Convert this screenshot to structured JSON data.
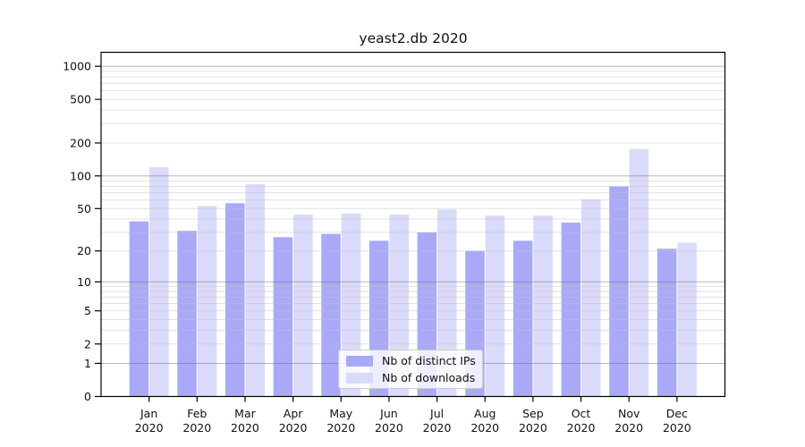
{
  "chart_data": {
    "type": "bar",
    "title": "yeast2.db 2020",
    "y_scale": "symlog (log1p)",
    "ylim": [
      0,
      1340
    ],
    "yticks": [
      1000,
      500,
      200,
      100,
      50,
      20,
      10,
      5,
      2,
      1,
      0
    ],
    "grid": "on",
    "months": [
      "Jan",
      "Feb",
      "Mar",
      "Apr",
      "May",
      "Jun",
      "Jul",
      "Aug",
      "Sep",
      "Oct",
      "Nov",
      "Dec"
    ],
    "year": "2020",
    "series": [
      {
        "key": "ips",
        "name": "Nb of distinct IPs",
        "color": "#a9a9f8",
        "values": [
          38,
          31,
          56,
          27,
          29,
          25,
          30,
          20,
          25,
          37,
          80,
          21
        ]
      },
      {
        "key": "downloads",
        "name": "Nb of downloads",
        "color": "#dadafa",
        "values": [
          120,
          53,
          84,
          44,
          45,
          44,
          49,
          43,
          43,
          61,
          176,
          24
        ]
      }
    ],
    "legend_position": "lower center",
    "colors": {
      "axis": "#000000",
      "text": "#111111",
      "grid_major": "rgba(110,110,110,0.50)",
      "grid_minor": "rgba(195,195,195,0.50)",
      "background": "#ffffff"
    }
  }
}
